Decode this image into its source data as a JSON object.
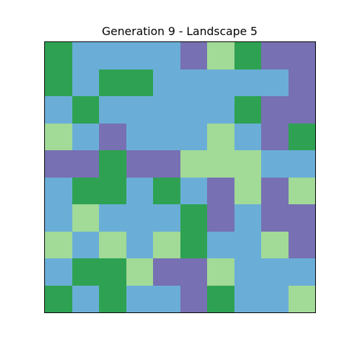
{
  "title": "Generation 9 - Landscape 5",
  "palette": {
    "0": "#2ea252",
    "1": "#6aaed7",
    "2": "#a2da97",
    "3": "#7770b2"
  },
  "grid": [
    [
      0,
      1,
      1,
      1,
      1,
      3,
      2,
      0,
      3,
      3
    ],
    [
      0,
      1,
      0,
      0,
      1,
      1,
      1,
      1,
      1,
      3
    ],
    [
      1,
      0,
      1,
      1,
      1,
      1,
      1,
      0,
      3,
      3
    ],
    [
      2,
      1,
      3,
      1,
      1,
      1,
      2,
      1,
      3,
      0
    ],
    [
      3,
      3,
      0,
      3,
      3,
      2,
      2,
      2,
      1,
      1
    ],
    [
      1,
      0,
      0,
      1,
      0,
      1,
      3,
      2,
      3,
      2
    ],
    [
      1,
      2,
      1,
      1,
      1,
      0,
      3,
      1,
      3,
      3
    ],
    [
      2,
      1,
      2,
      1,
      2,
      0,
      1,
      1,
      2,
      3
    ],
    [
      1,
      0,
      0,
      2,
      3,
      3,
      2,
      1,
      1,
      1
    ],
    [
      0,
      1,
      0,
      1,
      1,
      3,
      0,
      1,
      1,
      2
    ]
  ]
}
